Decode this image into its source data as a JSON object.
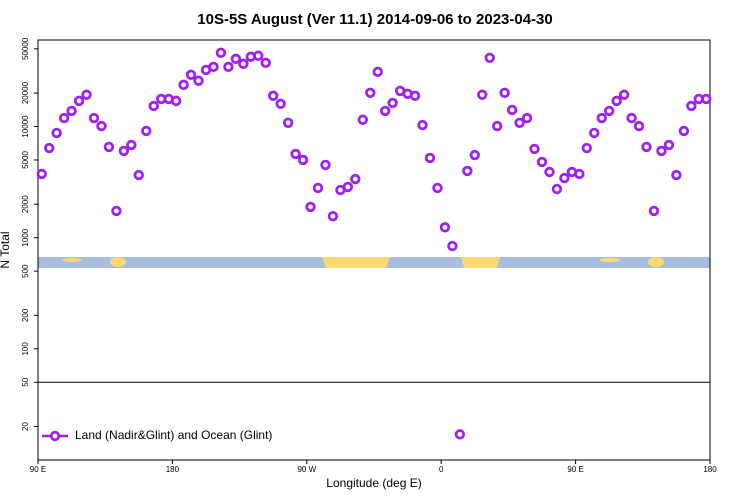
{
  "chart_data": {
    "type": "scatter",
    "title": "10S-5S August (Ver 11.1)   2014-09-06 to 2023-04-30",
    "xlabel": "Longitude (deg E)",
    "ylabel": "N Total",
    "log_y": true,
    "xlim": [
      90,
      540
    ],
    "ylim": [
      10,
      60000
    ],
    "xticks": [
      {
        "value": 90,
        "label": "90 E"
      },
      180,
      {
        "value": 270,
        "label": "90 W"
      },
      {
        "value": 360,
        "label": "0"
      },
      {
        "value": 450,
        "label": "90 E"
      },
      {
        "value": 540,
        "label": "180"
      }
    ],
    "yticks": [
      20,
      50,
      100,
      200,
      500,
      1000,
      2000,
      5000,
      10000,
      20000,
      50000
    ],
    "reference_line": 50,
    "legend": "lower left",
    "x": [
      92.5,
      97.5,
      102.5,
      107.5,
      112.5,
      117.5,
      122.5,
      127.5,
      132.5,
      137.5,
      142.5,
      147.5,
      152.5,
      157.5,
      162.5,
      167.5,
      172.5,
      177.5,
      182.5,
      187.5,
      192.5,
      197.5,
      202.5,
      207.5,
      212.5,
      217.5,
      222.5,
      227.5,
      232.5,
      237.5,
      242.5,
      247.5,
      252.5,
      257.5,
      262.5,
      267.5,
      272.5,
      277.5,
      282.5,
      287.5,
      292.5,
      297.5,
      302.5,
      307.5,
      312.5,
      317.5,
      322.5,
      327.5,
      332.5,
      337.5,
      342.5,
      347.5,
      352.5,
      357.5,
      362.5,
      367.5,
      372.5,
      377.5,
      382.5,
      387.5,
      392.5,
      397.5,
      402.5,
      407.5,
      412.5,
      417.5,
      422.5,
      427.5,
      432.5,
      437.5,
      442.5,
      447.5,
      452.5,
      457.5,
      462.5,
      467.5,
      472.5,
      477.5,
      482.5,
      487.5,
      492.5,
      497.5,
      502.5,
      507.5,
      512.5,
      517.5,
      522.5,
      527.5,
      532.5,
      537.5
    ],
    "series": [
      {
        "name": "Land (Nadir&Glint) and Ocean (Glint)",
        "color": "#a020f0",
        "values": [
          3740,
          6400,
          8750,
          11900,
          13800,
          17000,
          19300,
          11900,
          10100,
          6550,
          1740,
          6030,
          6820,
          3660,
          9120,
          15300,
          17700,
          17700,
          17000,
          23700,
          29200,
          25800,
          32300,
          34400,
          46000,
          34400,
          40600,
          36600,
          42400,
          43300,
          37400,
          18900,
          16000,
          10800,
          5660,
          5000,
          1890,
          2800,
          4510,
          1560,
          2680,
          2860,
          3370,
          11500,
          20100,
          31000,
          13800,
          16300,
          20900,
          19700,
          18900,
          10300,
          5210,
          2800,
          1240,
          840,
          17,
          3980,
          5540,
          19300,
          41500,
          10100,
          20100,
          14100,
          10800,
          11900,
          6280,
          4800,
          3900,
          2740,
          3440,
          3900,
          3740,
          6400,
          8750,
          11900,
          13800,
          17000,
          19300,
          11900,
          10100,
          6550,
          1740,
          6030,
          6820,
          3660,
          9120,
          15300,
          17700,
          17700
        ]
      }
    ]
  }
}
